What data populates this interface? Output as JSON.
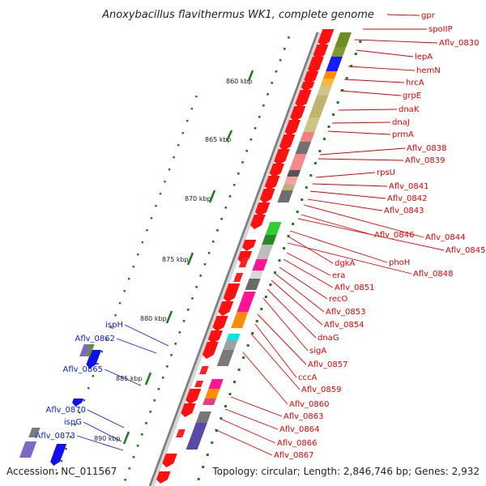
{
  "title": "Anoxybacillus flavithermus WK1, complete genome",
  "footer": {
    "accession": "Accession: NC_011567",
    "summary": "Topology: circular; Length: 2,846,746 bp; Genes: 2,932"
  },
  "colors": {
    "forward_gene": "#ff0000",
    "reverse_gene": "#1010ee",
    "backbone": "#8a8a8a",
    "gc_tick": "#1e7a1e",
    "label_red": "#e00000",
    "label_blue": "#1020c8"
  },
  "kbp_ticks": [
    "860 kbp",
    "865 kbp",
    "870 kbp",
    "875 kbp",
    "880 kbp",
    "885 kbp",
    "890 kbp"
  ],
  "red_labels": [
    "gpr",
    "spoIIP",
    "Aflv_0830",
    "lepA",
    "hemN",
    "hrcA",
    "grpE",
    "dnaK",
    "dnaJ",
    "prmA",
    "Aflv_0838",
    "Aflv_0839",
    "rpsU",
    "Aflv_0841",
    "Aflv_0842",
    "Aflv_0843",
    "Aflv_0844",
    "Aflv_0846",
    "Aflv_0845",
    "phoH",
    "dgkA",
    "Aflv_0848",
    "era",
    "Aflv_0851",
    "recO",
    "Aflv_0853",
    "Aflv_0854",
    "dnaG",
    "sigA",
    "Aflv_0857",
    "cccA",
    "Aflv_0859",
    "Aflv_0860",
    "Aflv_0863",
    "Aflv_0864",
    "Aflv_0866",
    "Aflv_0867"
  ],
  "blue_labels": [
    "ispH",
    "Aflv_0862",
    "Aflv_0865",
    "Aflv_0870",
    "ispG",
    "Aflv_0873"
  ]
}
